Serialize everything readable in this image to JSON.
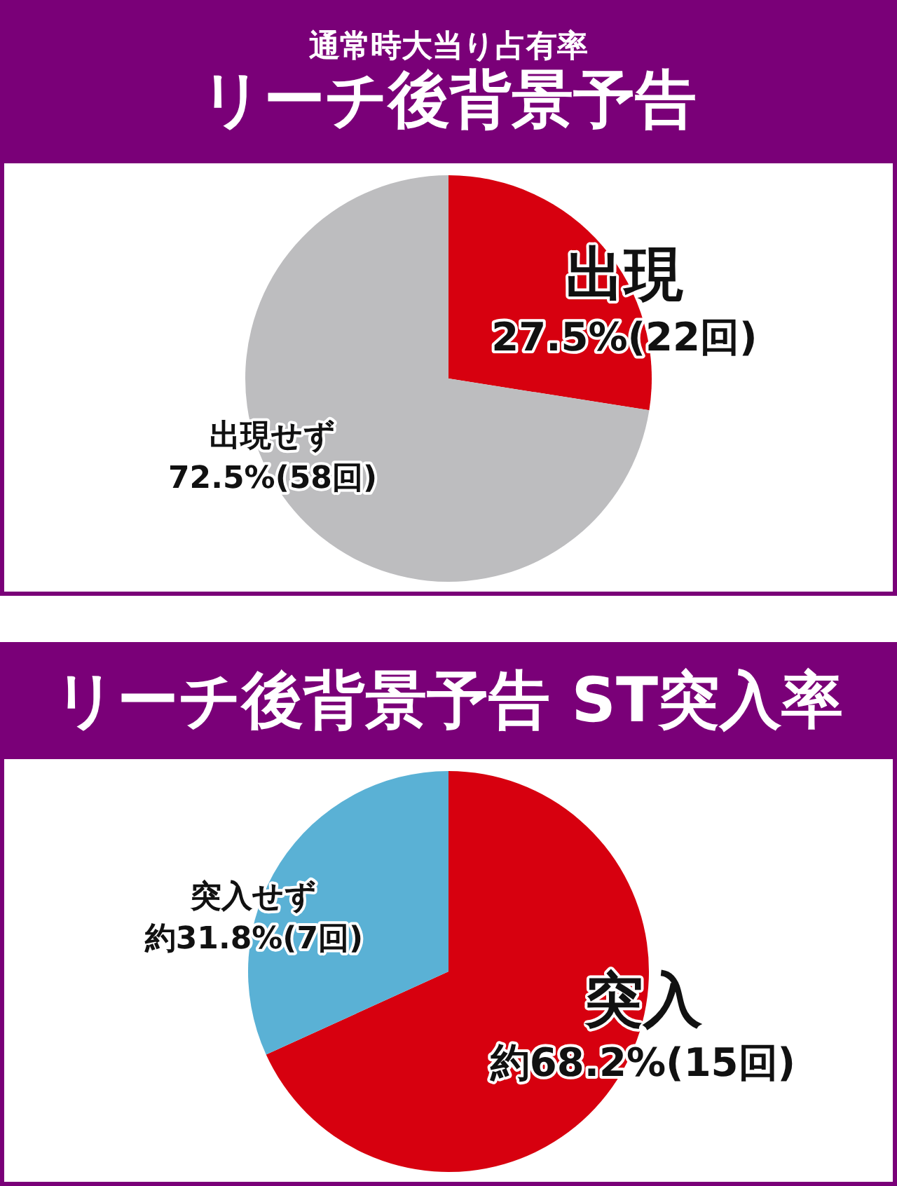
{
  "chart_data": [
    {
      "type": "pie",
      "subtitle": "通常時大当り占有率",
      "title": "リーチ後背景予告",
      "categories": [
        "出現",
        "出現せず"
      ],
      "values": [
        27.5,
        72.5
      ],
      "colors": [
        "#d7000f",
        "#bdbdbf"
      ],
      "value_labels": [
        "27.5%(22回)",
        "72.5%(58回)"
      ],
      "legend": false
    },
    {
      "type": "pie",
      "title": "リーチ後背景予告 ST突入率",
      "categories": [
        "突入",
        "突入せず"
      ],
      "values": [
        68.2,
        31.8
      ],
      "colors": [
        "#d7000f",
        "#5ab1d5"
      ],
      "value_labels": [
        "約68.2%(15回)",
        "約31.8%(7回)"
      ],
      "legend": false
    }
  ]
}
